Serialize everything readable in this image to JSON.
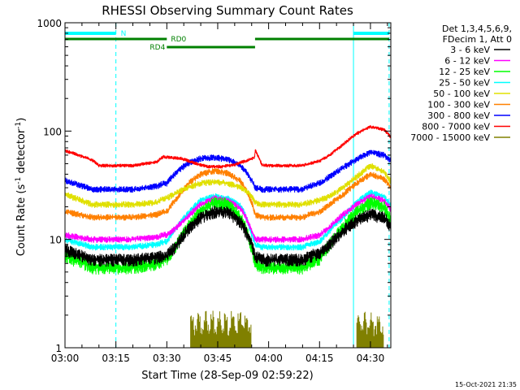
{
  "chart_data": {
    "type": "line",
    "title": "RHESSI Observing Summary Count Rates",
    "xlabel": "Start Time (28-Sep-09 02:59:22)",
    "ylabel": "Count Rate (s⁻¹ detector⁻¹)",
    "ylabel_parts": {
      "main": "Count Rate (s",
      "exp1": "-1",
      "mid": " detector",
      "exp2": "-1",
      "end": ")"
    },
    "yscale": "log",
    "ylim": [
      1,
      1000
    ],
    "xlim_minutes": [
      0,
      96
    ],
    "x_ticks": [
      {
        "minute": 0,
        "label": "03:00"
      },
      {
        "minute": 15,
        "label": "03:15"
      },
      {
        "minute": 30,
        "label": "03:30"
      },
      {
        "minute": 45,
        "label": "03:45"
      },
      {
        "minute": 60,
        "label": "04:00"
      },
      {
        "minute": 75,
        "label": "04:15"
      },
      {
        "minute": 90,
        "label": "04:30"
      }
    ],
    "y_ticks": [
      {
        "value": 1,
        "label": "1"
      },
      {
        "value": 10,
        "label": "10"
      },
      {
        "value": 100,
        "label": "100"
      },
      {
        "value": 1000,
        "label": "1000"
      }
    ],
    "legend_header": [
      "Det 1,3,4,5,6,9,",
      "FDecim 1, Att 0"
    ],
    "series": [
      {
        "name": "3 - 6 keV",
        "color": "#000000",
        "x": [
          0,
          8,
          10,
          14,
          20,
          27,
          29,
          30,
          33,
          36,
          40,
          44,
          48,
          52,
          55,
          56,
          58,
          60,
          62,
          66,
          70,
          72,
          75,
          78,
          82,
          86,
          90,
          94,
          96
        ],
        "y": [
          8,
          6.5,
          6.5,
          6.5,
          6.5,
          6.8,
          7,
          7,
          9,
          12,
          16,
          18,
          18,
          14,
          9,
          7,
          6.5,
          6.5,
          6.5,
          6.5,
          6.5,
          7,
          7.5,
          9,
          12,
          15,
          17,
          16,
          13
        ]
      },
      {
        "name": "6 - 12 keV",
        "color": "#ff00ff",
        "x": [
          0,
          8,
          10,
          14,
          20,
          27,
          29,
          30,
          33,
          36,
          40,
          44,
          48,
          52,
          55,
          56,
          58,
          60,
          62,
          66,
          70,
          72,
          75,
          78,
          82,
          86,
          90,
          94,
          96
        ],
        "y": [
          11,
          10,
          10,
          10,
          10,
          10.5,
          11,
          11,
          13,
          16,
          21,
          24,
          23,
          19,
          12,
          10,
          10,
          10,
          10,
          10,
          10,
          10.5,
          11,
          13,
          17,
          21,
          25,
          23,
          19
        ]
      },
      {
        "name": "12 - 25 keV",
        "color": "#00ff00",
        "x": [
          0,
          8,
          10,
          14,
          20,
          27,
          29,
          30,
          33,
          36,
          40,
          44,
          48,
          52,
          55,
          56,
          58,
          60,
          62,
          66,
          70,
          72,
          75,
          78,
          82,
          86,
          90,
          94,
          96
        ],
        "y": [
          7,
          5.5,
          5.5,
          5.5,
          5.5,
          6,
          6.5,
          6.5,
          9,
          13,
          18,
          22,
          21,
          16,
          8,
          6,
          5.5,
          5.5,
          5.5,
          5.5,
          5.5,
          6,
          6.5,
          9,
          13,
          18,
          22,
          20,
          15
        ]
      },
      {
        "name": "25 - 50 keV",
        "color": "#00ffff",
        "x": [
          0,
          8,
          10,
          14,
          20,
          27,
          29,
          30,
          33,
          36,
          40,
          44,
          48,
          52,
          55,
          56,
          58,
          60,
          62,
          66,
          70,
          72,
          75,
          78,
          82,
          86,
          90,
          94,
          96
        ],
        "y": [
          10,
          8.5,
          8.5,
          8.5,
          8.5,
          9,
          9.5,
          9.5,
          13,
          17,
          23,
          25,
          24,
          20,
          11,
          9,
          8.5,
          8.5,
          8.5,
          8.5,
          8.5,
          9,
          9.5,
          12,
          16,
          22,
          27,
          25,
          20
        ]
      },
      {
        "name": "50 - 100 keV",
        "color": "#e0e000",
        "x": [
          0,
          8,
          10,
          14,
          20,
          27,
          29,
          30,
          33,
          36,
          40,
          44,
          48,
          52,
          55,
          56,
          58,
          60,
          62,
          66,
          70,
          72,
          75,
          78,
          82,
          86,
          90,
          94,
          96
        ],
        "y": [
          26,
          21,
          21,
          21,
          21,
          22,
          24,
          24,
          27,
          30,
          33,
          34,
          33,
          30,
          25,
          22,
          21,
          21,
          21,
          21,
          21,
          22,
          23,
          25,
          30,
          38,
          48,
          42,
          34
        ]
      },
      {
        "name": "100 - 300 keV",
        "color": "#ff8000",
        "x": [
          0,
          8,
          10,
          14,
          20,
          27,
          29,
          30,
          33,
          36,
          40,
          44,
          48,
          52,
          55,
          56,
          58,
          60,
          62,
          66,
          70,
          72,
          75,
          78,
          82,
          86,
          90,
          94,
          96
        ],
        "y": [
          18,
          16,
          16,
          16,
          16,
          17,
          18,
          18,
          24,
          32,
          40,
          43,
          41,
          34,
          22,
          17,
          16,
          16,
          16,
          16,
          16,
          17,
          18,
          21,
          26,
          33,
          40,
          36,
          30
        ]
      },
      {
        "name": "300 - 800 keV",
        "color": "#0000ff",
        "x": [
          0,
          8,
          10,
          14,
          20,
          27,
          29,
          30,
          33,
          36,
          40,
          44,
          48,
          52,
          55,
          56,
          58,
          60,
          62,
          66,
          70,
          72,
          75,
          78,
          82,
          86,
          90,
          94,
          96
        ],
        "y": [
          35,
          29,
          29,
          29,
          29,
          31,
          33,
          33,
          42,
          50,
          56,
          57,
          55,
          47,
          35,
          30,
          29,
          29,
          29,
          29,
          29,
          31,
          33,
          38,
          46,
          55,
          64,
          60,
          53
        ]
      },
      {
        "name": "800 - 7000 keV",
        "color": "#ff0000",
        "x": [
          0,
          8,
          10,
          14,
          20,
          27,
          29,
          29.1,
          31,
          34,
          38,
          42,
          46,
          50,
          54,
          55.9,
          56,
          58,
          60,
          62,
          66,
          70,
          72,
          75,
          78,
          82,
          86,
          90,
          94,
          96
        ],
        "y": [
          66,
          54,
          48,
          48,
          48,
          52,
          58,
          58,
          57,
          56,
          51,
          47,
          47,
          49,
          54,
          57,
          67,
          49,
          48,
          48,
          48,
          48,
          50,
          53,
          60,
          75,
          95,
          110,
          103,
          88
        ]
      },
      {
        "name": "7000 - 15000 keV",
        "color": "#808000",
        "x": [
          37,
          38,
          39,
          40,
          41,
          42,
          43,
          44,
          45,
          46,
          47,
          48,
          49,
          50,
          51,
          52,
          53,
          54,
          86,
          87,
          88,
          89,
          90,
          91,
          92,
          93
        ],
        "y": [
          2,
          1.5,
          2,
          1.5,
          2,
          1.5,
          2,
          1.5,
          2,
          1.5,
          2,
          1.5,
          2,
          1.5,
          2,
          1.5,
          2,
          1.5,
          2,
          1.5,
          2,
          1.5,
          2,
          1.5,
          2,
          1.5
        ]
      }
    ],
    "annotations": {
      "N": {
        "label": "N",
        "bars": [
          [
            0,
            15
          ],
          [
            85,
            95.5
          ]
        ],
        "color": "#00ffff"
      },
      "RD0": {
        "label": "RD0",
        "bars": [
          [
            0,
            30
          ],
          [
            56,
            95.5
          ]
        ],
        "color": "#008000"
      },
      "RD4": {
        "label": "RD4",
        "bars": [
          [
            30,
            56
          ]
        ],
        "color": "#008000"
      },
      "night_lines_minutes": [
        0,
        85
      ],
      "dashed_lines_minutes": [
        15,
        95.5
      ]
    }
  },
  "footer": {
    "timestamp": "15-Oct-2021 21:35"
  }
}
